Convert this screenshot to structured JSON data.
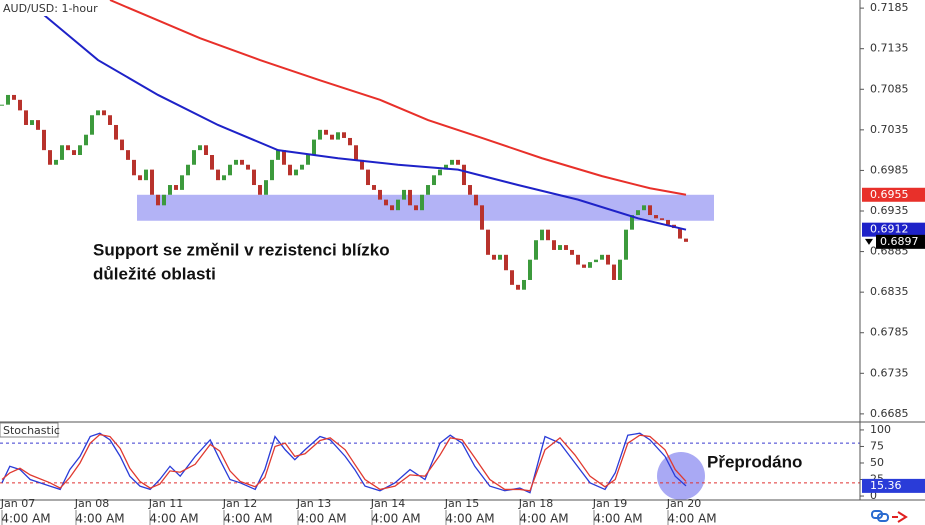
{
  "chart_data": {
    "type": "candlestick",
    "title": "AUD/USD: 1-hour",
    "up_color": "#3c9a3c",
    "down_color": "#b8322c",
    "values": [
      0.7066,
      0.7078,
      0.7072,
      0.7059,
      0.7041,
      0.7047,
      0.7035,
      0.701,
      0.6992,
      0.6998,
      0.7016,
      0.701,
      0.7004,
      0.7016,
      0.7029,
      0.7053,
      0.7059,
      0.7053,
      0.7041,
      0.7023,
      0.701,
      0.6998,
      0.6979,
      0.6973,
      0.6986,
      0.6955,
      0.6942,
      0.6955,
      0.6967,
      0.6961,
      0.6979,
      0.6992,
      0.701,
      0.7016,
      0.7004,
      0.6986,
      0.6973,
      0.6979,
      0.6992,
      0.6998,
      0.6992,
      0.6986,
      0.6967,
      0.6955,
      0.6973,
      0.6998,
      0.701,
      0.6992,
      0.6979,
      0.6986,
      0.6992,
      0.7004,
      0.7023,
      0.7035,
      0.7029,
      0.7023,
      0.7032,
      0.7025,
      0.7016,
      0.6998,
      0.6986,
      0.6967,
      0.6961,
      0.6949,
      0.6942,
      0.6936,
      0.6949,
      0.6961,
      0.6942,
      0.6936,
      0.6955,
      0.6967,
      0.6979,
      0.6986,
      0.6992,
      0.6998,
      0.6992,
      0.6967,
      0.6955,
      0.6942,
      0.6912,
      0.6881,
      0.6875,
      0.6881,
      0.6862,
      0.6844,
      0.6838,
      0.685,
      0.6875,
      0.6899,
      0.6912,
      0.6899,
      0.6887,
      0.6893,
      0.6887,
      0.6881,
      0.6869,
      0.6865,
      0.6872,
      0.6875,
      0.6881,
      0.6869,
      0.685,
      0.6875,
      0.6912,
      0.693,
      0.6936,
      0.6942,
      0.693,
      0.6926,
      0.6924,
      0.6918,
      0.6914,
      0.6901,
      0.6897
    ],
    "ylim": [
      0.6675,
      0.7195
    ],
    "yticks": [
      0.7185,
      0.7135,
      0.7085,
      0.7035,
      0.6985,
      0.6935,
      0.6885,
      0.6835,
      0.6785,
      0.6735,
      0.6685
    ],
    "lines": [
      {
        "color": "#e8302a",
        "x": [
          18,
          25,
          33,
          43,
          53,
          63,
          71,
          80,
          90,
          100,
          108,
          114
        ],
        "values": [
          0.7195,
          0.7173,
          0.7148,
          0.7121,
          0.7096,
          0.7072,
          0.7047,
          0.7025,
          0.7,
          0.6978,
          0.6963,
          0.6955
        ]
      },
      {
        "color": "#1e22c8",
        "x": [
          4,
          10,
          16,
          26,
          36,
          46,
          56,
          66,
          76,
          86,
          96,
          106,
          114
        ],
        "values": [
          0.7195,
          0.7158,
          0.7121,
          0.7078,
          0.7041,
          0.701,
          0.7,
          0.6992,
          0.6986,
          0.6967,
          0.6949,
          0.6926,
          0.6912
        ]
      }
    ],
    "zone": {
      "from": 0.6923,
      "to": 0.6955,
      "color": "#a6a6f5"
    },
    "date_labels": [
      "Jan 07",
      "Jan 08",
      "Jan 11",
      "Jan 12",
      "Jan 13",
      "Jan 14",
      "Jan 15",
      "Jan 18",
      "Jan 19",
      "Jan 20"
    ],
    "time_labels": [
      "4:00 AM",
      "4:00 AM",
      "4:00 AM",
      "4:00 AM",
      "4:00 AM",
      "4:00 AM",
      "4:00 AM",
      "4:00 AM",
      "4:00 AM",
      "4:00 AM"
    ],
    "annotations": [
      "Support se změnil v rezistenci blízko",
      "důležité oblasti",
      "Přeprodáno"
    ],
    "indicator": {
      "title": "Stochastic",
      "ylim": [
        -6,
        112
      ],
      "yticks": [
        100,
        75,
        50,
        25,
        0
      ],
      "levels": [
        {
          "value": 80,
          "color": "#3a3ad0"
        },
        {
          "value": 20,
          "color": "#e03030"
        }
      ],
      "series": [
        {
          "color": "#2a3cd8",
          "x": [
            0,
            1.3,
            3,
            4.7,
            8,
            9.7,
            11.3,
            13,
            14.7,
            16.3,
            18,
            19.7,
            21.3,
            23,
            24.7,
            26.3,
            28,
            29.7,
            32.2,
            34.7,
            36.3,
            38,
            39.7,
            42.2,
            43.8,
            45.5,
            47.2,
            48.8,
            50.5,
            53,
            54.7,
            57.2,
            58.8,
            60.5,
            63,
            65.5,
            68,
            70.5,
            73,
            74.7,
            76.7,
            78.8,
            81.3,
            83.8,
            86.3,
            88,
            90.5,
            93,
            95.5,
            98,
            100.5,
            102.2,
            104.3,
            106.3,
            108,
            110.5,
            112.2,
            114
          ],
          "values": [
            20,
            45,
            40,
            25,
            15,
            10,
            40,
            60,
            90,
            95,
            85,
            60,
            30,
            15,
            10,
            25,
            45,
            30,
            60,
            85,
            55,
            25,
            20,
            10,
            40,
            90,
            70,
            55,
            70,
            90,
            85,
            60,
            40,
            15,
            8,
            20,
            40,
            25,
            80,
            92,
            80,
            45,
            15,
            8,
            12,
            5,
            90,
            80,
            50,
            20,
            10,
            35,
            92,
            95,
            85,
            60,
            30,
            15.36
          ]
        },
        {
          "color": "#e03a30",
          "x": [
            0,
            1.3,
            3,
            4.7,
            8,
            9.7,
            11.3,
            13,
            14.7,
            16.3,
            18,
            19.7,
            21.3,
            23,
            24.7,
            26.3,
            28,
            29.7,
            32.2,
            34.7,
            36.3,
            38,
            39.7,
            42.2,
            43.8,
            45.5,
            47.2,
            48.8,
            50.5,
            53,
            54.7,
            57.2,
            58.8,
            60.5,
            63,
            65.5,
            68,
            70.5,
            73,
            74.7,
            76.7,
            78.8,
            81.3,
            83.8,
            86.3,
            88,
            90.5,
            93,
            95.5,
            98,
            100.5,
            102.2,
            104.3,
            106.3,
            108,
            110.5,
            112.2,
            114
          ],
          "values": [
            25,
            35,
            42,
            32,
            20,
            12,
            28,
            50,
            80,
            93,
            90,
            72,
            42,
            22,
            12,
            18,
            38,
            36,
            48,
            78,
            68,
            38,
            22,
            14,
            28,
            75,
            80,
            60,
            64,
            84,
            88,
            70,
            48,
            25,
            10,
            15,
            32,
            30,
            62,
            88,
            85,
            58,
            25,
            10,
            10,
            8,
            70,
            88,
            62,
            30,
            14,
            25,
            80,
            92,
            90,
            70,
            40,
            22
          ]
        }
      ]
    }
  }
}
